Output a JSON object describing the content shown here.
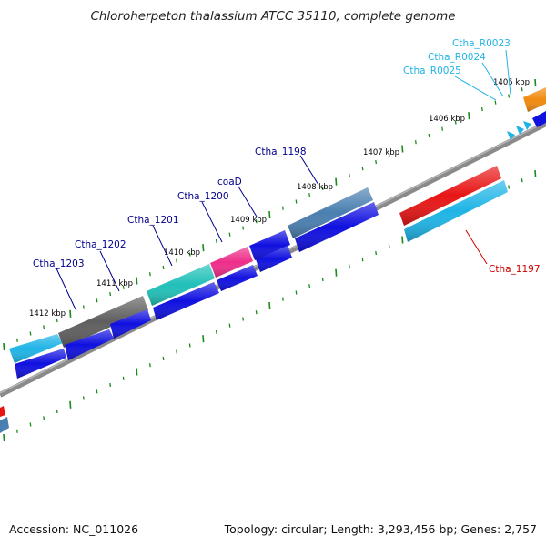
{
  "title": "Chloroherpeton thalassium ATCC 35110, complete genome",
  "footer": {
    "accession": "Accession: NC_011026",
    "summary": "Topology: circular; Length: 3,293,456 bp; Genes: 2,757"
  },
  "colors": {
    "backbone": "#888888",
    "tick": "#1a8a1a",
    "gene_label": "#00008b",
    "rna_label": "#1fb4e6",
    "highlight_label": "#cc0000"
  },
  "kbp_labels": [
    "1405 kbp",
    "1406 kbp",
    "1407 kbp",
    "1408 kbp",
    "1409 kbp",
    "1410 kbp",
    "1411 kbp",
    "1412 kbp"
  ],
  "gene_labels": [
    {
      "text": "Ctha_R0023",
      "kind": "rna"
    },
    {
      "text": "Ctha_R0024",
      "kind": "rna"
    },
    {
      "text": "Ctha_R0025",
      "kind": "rna"
    },
    {
      "text": "Ctha_1198",
      "kind": "gene"
    },
    {
      "text": "coaD",
      "kind": "gene"
    },
    {
      "text": "Ctha_1200",
      "kind": "gene"
    },
    {
      "text": "Ctha_1201",
      "kind": "gene"
    },
    {
      "text": "Ctha_1202",
      "kind": "gene"
    },
    {
      "text": "Ctha_1203",
      "kind": "gene"
    },
    {
      "text": "Ctha_1197",
      "kind": "highlight"
    }
  ]
}
